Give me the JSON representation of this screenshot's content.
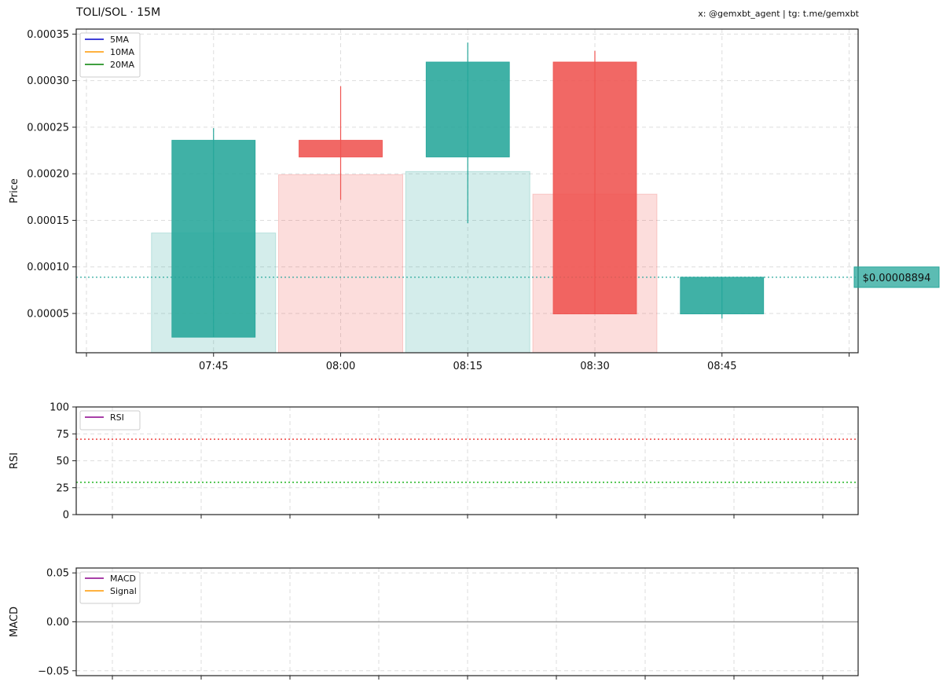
{
  "header": {
    "title": "TOLI/SOL · 15M",
    "watermark": "x: @gemxbt_agent | tg: t.me/gemxbt"
  },
  "colors": {
    "up": "#26a69a",
    "down": "#ef5350",
    "grid": "#dddddd",
    "ma5": "#0000cc",
    "ma10": "#ff9900",
    "ma20": "#008000",
    "rsi": "#8b008b",
    "macd": "#8b008b",
    "signal": "#ff9900",
    "overbought": "#ef5350",
    "oversold": "#33bb33"
  },
  "chart_data": [
    {
      "type": "candlestick",
      "panel": "price",
      "ylabel": "Price",
      "ylim": [
        7.8e-06,
        0.0003554
      ],
      "yticks": [
        "0.00005",
        "0.00010",
        "0.00015",
        "0.00020",
        "0.00025",
        "0.00030",
        "0.00035"
      ],
      "ytick_values": [
        5e-05,
        0.0001,
        0.00015,
        0.0002,
        0.00025,
        0.0003,
        0.00035
      ],
      "xticks": [
        "07:45",
        "08:00",
        "08:15",
        "08:30",
        "08:45"
      ],
      "legend": [
        "5MA",
        "10MA",
        "20MA"
      ],
      "legend_position": "top-left",
      "grid": true,
      "last_price_label": "$0.00008894",
      "last_price": 8.894e-05,
      "candles": [
        {
          "time": "07:45",
          "open": 2.45e-05,
          "high": 0.000249,
          "low": 2.45e-05,
          "close": 0.000236
        },
        {
          "time": "08:00",
          "open": 0.000236,
          "high": 0.000294,
          "low": 0.000172,
          "close": 0.000218
        },
        {
          "time": "08:15",
          "open": 0.000218,
          "high": 0.000341,
          "low": 0.000147,
          "close": 0.00032
        },
        {
          "time": "08:30",
          "open": 0.00032,
          "high": 0.000332,
          "low": 4.95e-05,
          "close": 4.95e-05
        },
        {
          "time": "08:45",
          "open": 4.95e-05,
          "high": 8.894e-05,
          "low": 4.45e-05,
          "close": 8.894e-05
        }
      ],
      "volume_overlay": [
        {
          "time": "07:45",
          "level": 0.37,
          "direction": "up"
        },
        {
          "time": "08:00",
          "level": 0.55,
          "direction": "down"
        },
        {
          "time": "08:15",
          "level": 0.56,
          "direction": "up"
        },
        {
          "time": "08:30",
          "level": 0.49,
          "direction": "down"
        }
      ]
    },
    {
      "type": "line",
      "panel": "rsi",
      "ylabel": "RSI",
      "ylim": [
        0,
        100
      ],
      "yticks": [
        "0",
        "25",
        "50",
        "75",
        "100"
      ],
      "ytick_values": [
        0,
        25,
        50,
        75,
        100
      ],
      "legend": [
        "RSI"
      ],
      "legend_position": "top-left",
      "grid": true,
      "reference_lines": [
        70,
        30
      ],
      "series": []
    },
    {
      "type": "line",
      "panel": "macd",
      "ylabel": "MACD",
      "ylim": [
        -0.055,
        0.055
      ],
      "yticks": [
        "−0.05",
        "0.00",
        "0.05"
      ],
      "ytick_values": [
        -0.05,
        0,
        0.05
      ],
      "legend": [
        "MACD",
        "Signal"
      ],
      "legend_position": "top-left",
      "grid": true,
      "zero_line": 0,
      "series": []
    }
  ]
}
